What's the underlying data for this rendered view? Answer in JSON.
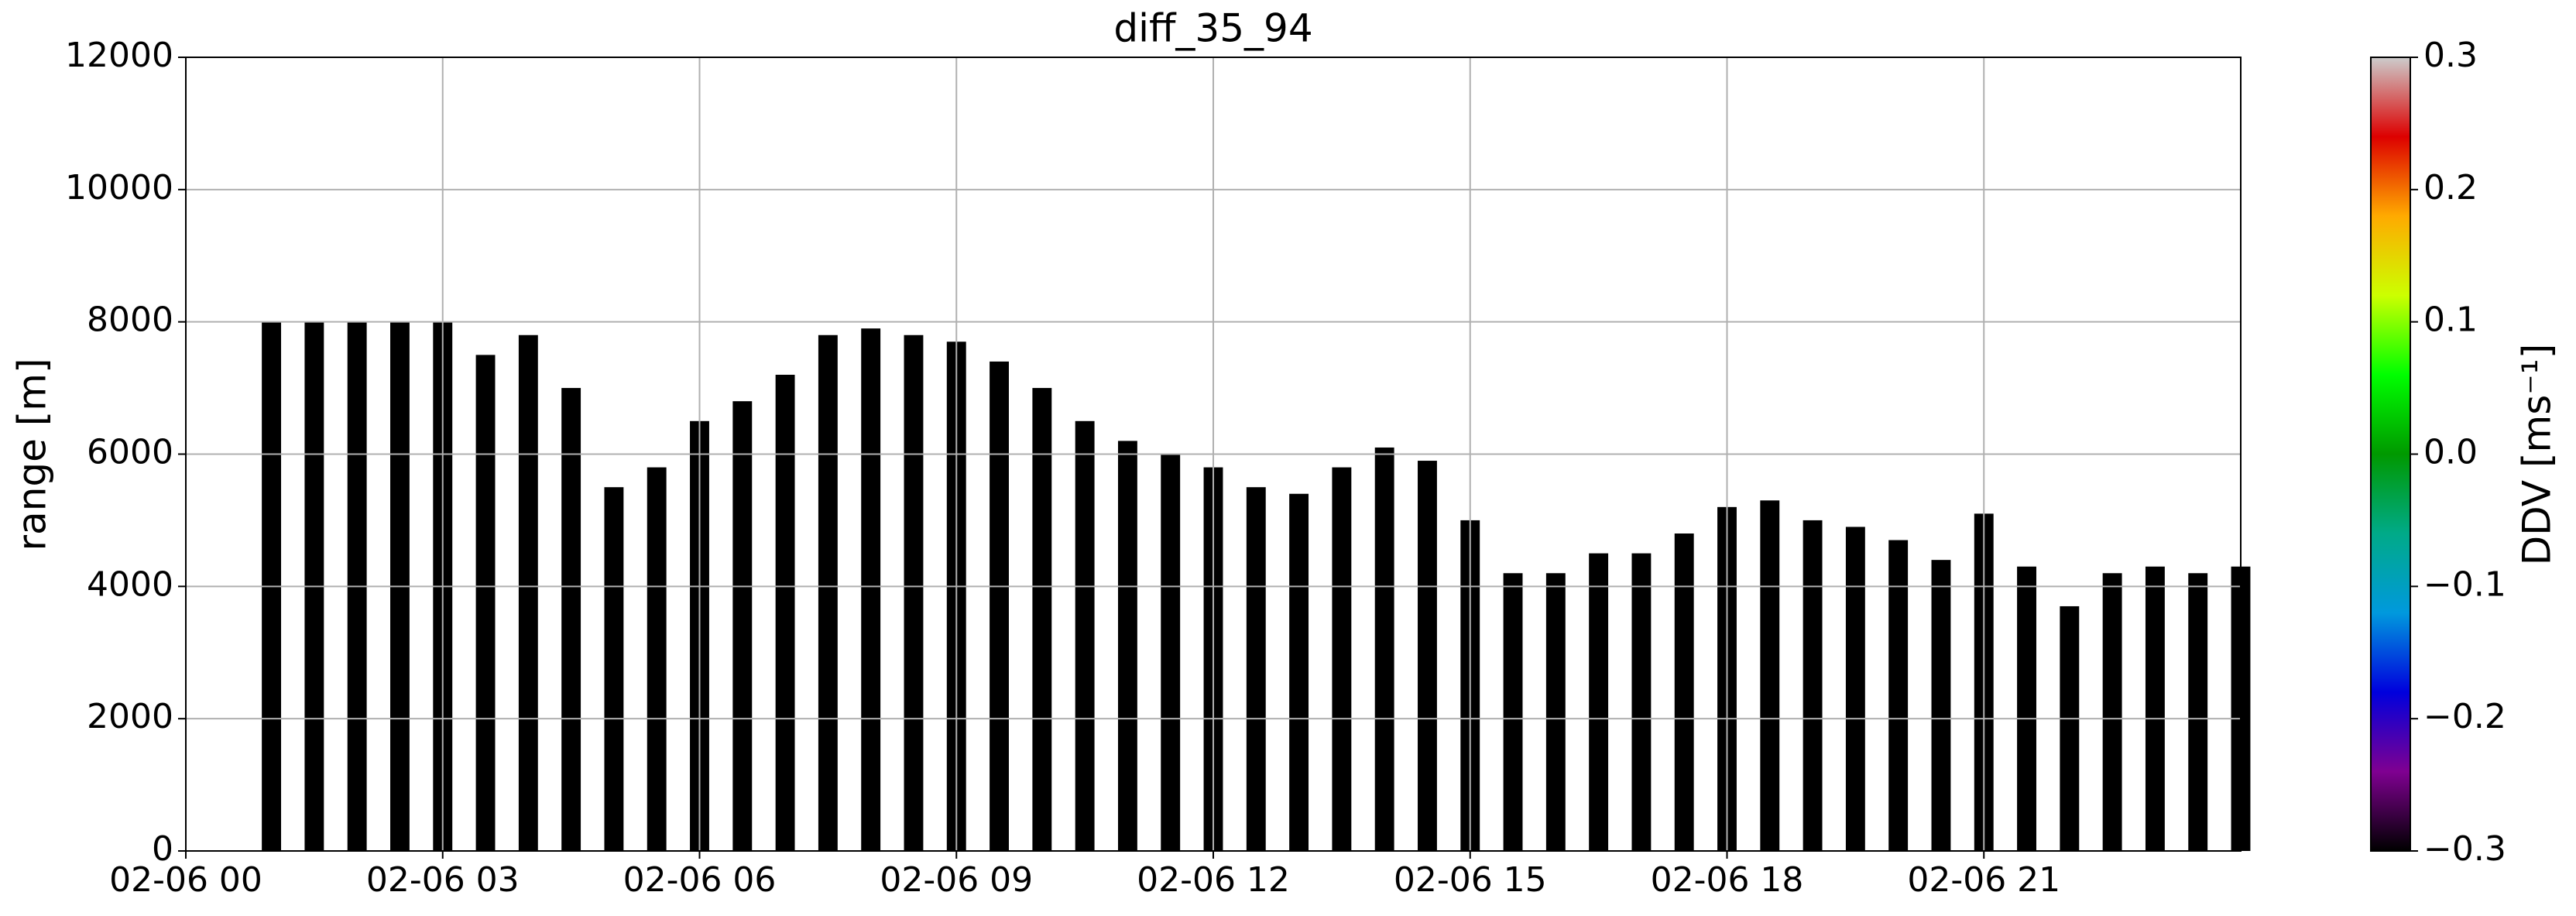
{
  "chart_data": {
    "type": "profile-bars",
    "title": "diff_35_94",
    "ylabel": "range [m]",
    "x": [
      1.0,
      1.5,
      2.0,
      2.5,
      3.0,
      3.5,
      4.0,
      4.5,
      5.0,
      5.5,
      6.0,
      6.5,
      7.0,
      7.5,
      8.0,
      8.5,
      9.0,
      9.5,
      10.0,
      10.5,
      11.0,
      11.5,
      12.0,
      12.5,
      13.0,
      13.5,
      14.0,
      14.5,
      15.0,
      15.5,
      16.0,
      16.5,
      17.0,
      17.5,
      18.0,
      18.5,
      19.0,
      19.5,
      20.0,
      20.5,
      21.0,
      21.5,
      22.0,
      22.5,
      23.0,
      23.5,
      24.0
    ],
    "values": [
      8000,
      8000,
      8000,
      8000,
      8000,
      7500,
      7800,
      7000,
      5500,
      5800,
      6500,
      6800,
      7200,
      7800,
      7900,
      7800,
      7700,
      7400,
      7000,
      6500,
      6200,
      6000,
      5800,
      5500,
      5400,
      5800,
      6100,
      5900,
      5000,
      4200,
      4200,
      4500,
      4500,
      4800,
      5200,
      5300,
      5000,
      4900,
      4700,
      4400,
      5100,
      4300,
      3700,
      4200,
      4300,
      4200,
      4300
    ],
    "color": "#000000",
    "xlim": [
      0,
      24
    ],
    "xticks": [
      {
        "value": 0,
        "label": "02-06 00"
      },
      {
        "value": 3,
        "label": "02-06 03"
      },
      {
        "value": 6,
        "label": "02-06 06"
      },
      {
        "value": 9,
        "label": "02-06 09"
      },
      {
        "value": 12,
        "label": "02-06 12"
      },
      {
        "value": 15,
        "label": "02-06 15"
      },
      {
        "value": 18,
        "label": "02-06 18"
      },
      {
        "value": 21,
        "label": "02-06 21"
      }
    ],
    "ylim": [
      0,
      12000
    ],
    "yticks": [
      0,
      2000,
      4000,
      6000,
      8000,
      10000,
      12000
    ],
    "grid": true,
    "colorbar": {
      "label": "DDV [ms⁻¹]",
      "clim": [
        -0.3,
        0.3
      ],
      "ticks": [
        {
          "value": -0.3,
          "label": "−0.3"
        },
        {
          "value": -0.2,
          "label": "−0.2"
        },
        {
          "value": -0.1,
          "label": "−0.1"
        },
        {
          "value": 0,
          "label": "0.0"
        },
        0.1,
        0.2,
        0.3
      ]
    }
  }
}
